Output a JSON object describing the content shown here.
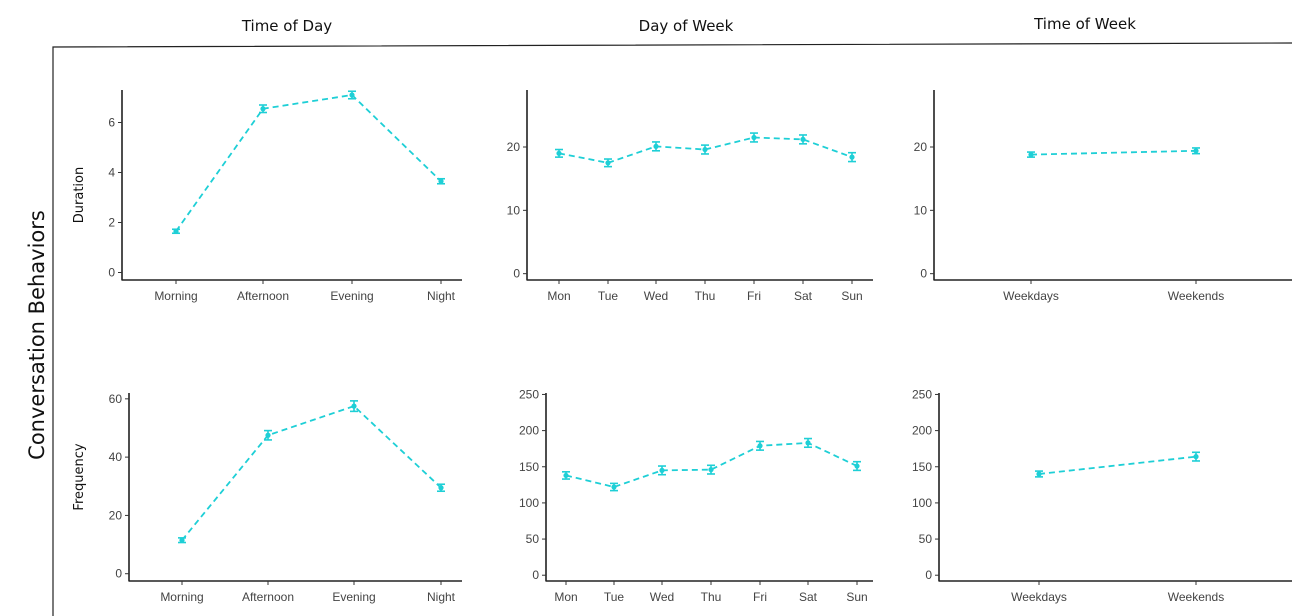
{
  "figure": {
    "side_title": "Conversation Behaviors",
    "column_titles": [
      "Time of Day",
      "Day of Week",
      "Time of Week"
    ],
    "row_labels": [
      "Duration",
      "Frequency"
    ],
    "colors": {
      "series": "#1ecfd6",
      "axis": "#222222",
      "text": "#444444"
    }
  },
  "chart_data": [
    {
      "type": "line",
      "ylabel": "Duration",
      "categories": [
        "Morning",
        "Afternoon",
        "Evening",
        "Night"
      ],
      "values": [
        1.65,
        6.55,
        7.1,
        3.65
      ],
      "error": [
        0.08,
        0.15,
        0.15,
        0.1
      ],
      "ylim": [
        -0.3,
        7.3
      ],
      "yticks": [
        0,
        2,
        4,
        6
      ],
      "grid": false,
      "line_style": "dashed"
    },
    {
      "type": "line",
      "ylabel": "",
      "categories": [
        "Mon",
        "Tue",
        "Wed",
        "Thu",
        "Fri",
        "Sat",
        "Sun"
      ],
      "values": [
        19.0,
        17.5,
        20.1,
        19.6,
        21.5,
        21.2,
        18.4
      ],
      "error": [
        0.6,
        0.6,
        0.7,
        0.7,
        0.7,
        0.7,
        0.7
      ],
      "ylim": [
        -1,
        29
      ],
      "yticks": [
        0,
        10,
        20
      ],
      "grid": false,
      "line_style": "dashed"
    },
    {
      "type": "line",
      "ylabel": "",
      "categories": [
        "Weekdays",
        "Weekends"
      ],
      "values": [
        18.8,
        19.4
      ],
      "error": [
        0.4,
        0.45
      ],
      "ylim": [
        -1,
        29
      ],
      "yticks": [
        0,
        10,
        20
      ],
      "grid": false,
      "line_style": "dashed"
    },
    {
      "type": "line",
      "ylabel": "Frequency",
      "categories": [
        "Morning",
        "Afternoon",
        "Evening",
        "Night"
      ],
      "values": [
        11.5,
        47.5,
        57.5,
        29.5
      ],
      "error": [
        0.8,
        1.6,
        1.8,
        1.2
      ],
      "ylim": [
        -2.5,
        62
      ],
      "yticks": [
        0,
        20,
        40,
        60
      ],
      "grid": false,
      "line_style": "dashed"
    },
    {
      "type": "line",
      "ylabel": "",
      "categories": [
        "Mon",
        "Tue",
        "Wed",
        "Thu",
        "Fri",
        "Sat",
        "Sun"
      ],
      "values": [
        138,
        122,
        145,
        146,
        179,
        183,
        151
      ],
      "error": [
        5,
        5,
        6,
        6,
        6,
        6,
        6
      ],
      "ylim": [
        -8,
        252
      ],
      "yticks": [
        0,
        50,
        100,
        150,
        200,
        250
      ],
      "grid": false,
      "line_style": "dashed"
    },
    {
      "type": "line",
      "ylabel": "",
      "categories": [
        "Weekdays",
        "Weekends"
      ],
      "values": [
        140,
        164
      ],
      "error": [
        4,
        6
      ],
      "ylim": [
        -8,
        252
      ],
      "yticks": [
        0,
        50,
        100,
        150,
        200,
        250
      ],
      "grid": false,
      "line_style": "dashed"
    }
  ]
}
